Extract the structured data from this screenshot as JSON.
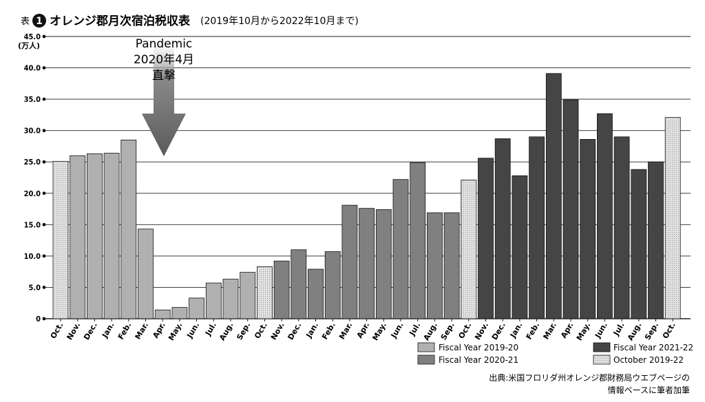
{
  "title": {
    "prefix": "表",
    "number": "1",
    "main": "オレンジ郡月次宿泊税収表",
    "subtitle": "(2019年10月から2022年10月まで)"
  },
  "source": {
    "line1": "出典:米国フロリダ州オレンジ郡財務局ウエブページの",
    "line2": "情報ベースに筆者加筆"
  },
  "colors": {
    "fy2019_20": "#b0b0b0",
    "fy2020_21": "#808080",
    "fy2021_22": "#454545",
    "october": "#d8d8d8",
    "arrow": "#707070"
  },
  "chart_data": {
    "type": "bar",
    "title": "オレンジ郡月次宿泊税収表",
    "ylabel": "(万人)",
    "ylim": [
      0,
      45
    ],
    "yticks": [
      "0",
      "5.0",
      "10.0",
      "15.0",
      "20.0",
      "25.0",
      "30.0",
      "35.0",
      "40.0",
      "45.0"
    ],
    "grid": true,
    "legend_position": "bottom-right",
    "legend": [
      {
        "key": "fy2019_20",
        "label": "Fiscal Year 2019-20"
      },
      {
        "key": "fy2021_22",
        "label": "Fiscal Year 2021-22"
      },
      {
        "key": "fy2020_21",
        "label": "Fiscal Year 2020-21"
      },
      {
        "key": "october",
        "label": "October 2019-22"
      }
    ],
    "categories": [
      "Oct.",
      "Nov.",
      "Dec.",
      "Jan.",
      "Feb.",
      "Mar.",
      "Apr.",
      "May.",
      "Jun.",
      "Jul.",
      "Aug.",
      "Sep.",
      "Oct.",
      "Nov.",
      "Dec.",
      "Jan.",
      "Feb.",
      "Mar.",
      "Apr.",
      "May.",
      "Jun.",
      "Jul.",
      "Aug.",
      "Sep.",
      "Oct.",
      "Nov.",
      "Dec.",
      "Jan.",
      "Feb.",
      "Mar.",
      "Apr.",
      "May.",
      "Jun.",
      "Jul.",
      "Aug.",
      "Sep.",
      "Oct."
    ],
    "values": [
      25.1,
      26.0,
      26.3,
      26.4,
      28.5,
      14.3,
      1.4,
      1.8,
      3.3,
      5.7,
      6.3,
      7.4,
      8.3,
      9.2,
      11.0,
      7.9,
      10.7,
      18.1,
      17.6,
      17.4,
      22.2,
      24.9,
      16.9,
      16.9,
      22.1,
      25.6,
      28.7,
      22.8,
      29.0,
      39.1,
      34.9,
      28.6,
      32.7,
      29.0,
      23.8,
      25.0,
      32.1
    ],
    "groups": [
      "october",
      "fy2019_20",
      "fy2019_20",
      "fy2019_20",
      "fy2019_20",
      "fy2019_20",
      "fy2019_20",
      "fy2019_20",
      "fy2019_20",
      "fy2019_20",
      "fy2019_20",
      "fy2019_20",
      "october",
      "fy2020_21",
      "fy2020_21",
      "fy2020_21",
      "fy2020_21",
      "fy2020_21",
      "fy2020_21",
      "fy2020_21",
      "fy2020_21",
      "fy2020_21",
      "fy2020_21",
      "fy2020_21",
      "october",
      "fy2021_22",
      "fy2021_22",
      "fy2021_22",
      "fy2021_22",
      "fy2021_22",
      "fy2021_22",
      "fy2021_22",
      "fy2021_22",
      "fy2021_22",
      "fy2021_22",
      "fy2021_22",
      "october"
    ],
    "annotation": {
      "lines": [
        "Pandemic",
        "2020年4月",
        "直撃"
      ],
      "points_to": "Apr."
    }
  }
}
